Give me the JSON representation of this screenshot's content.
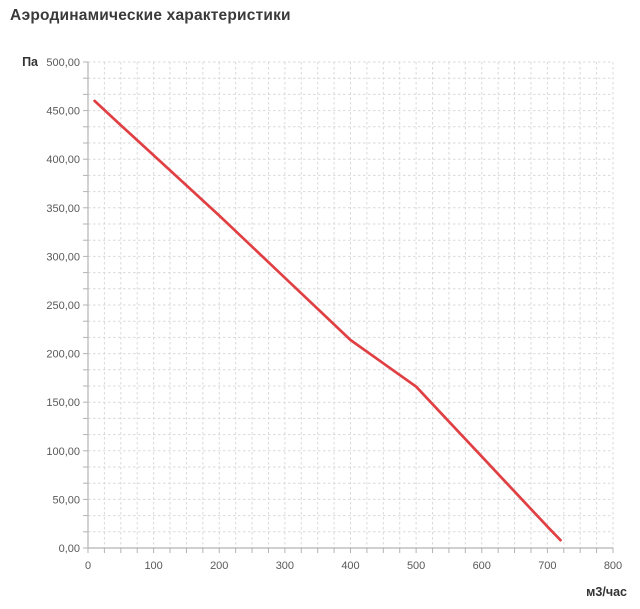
{
  "page": {
    "title": "Аэродинамические характеристики"
  },
  "chart_data": {
    "type": "line",
    "title": "Аэродинамические характеристики",
    "xlabel": "м3/час",
    "ylabel": "Па",
    "xlim": [
      0,
      800
    ],
    "ylim": [
      0,
      500
    ],
    "grid": true,
    "grid_minor_x_step": 25,
    "grid_minor_y_divisions": 30,
    "legend_position": "none",
    "x_tick_values": [
      0,
      100,
      200,
      300,
      400,
      500,
      600,
      700,
      800
    ],
    "x_tick_labels": [
      "0",
      "100",
      "200",
      "300",
      "400",
      "500",
      "600",
      "700",
      "800"
    ],
    "y_tick_values": [
      0,
      50,
      100,
      150,
      200,
      250,
      300,
      350,
      400,
      450,
      500
    ],
    "y_tick_labels": [
      "0,00",
      "50,00",
      "100,00",
      "150,00",
      "200,00",
      "250,00",
      "300,00",
      "350,00",
      "400,00",
      "450,00",
      "500,00"
    ],
    "series": [
      {
        "x": [
          10,
          50,
          100,
          150,
          200,
          250,
          300,
          350,
          400,
          450,
          500,
          550,
          600,
          650,
          700,
          720
        ],
        "y": [
          460,
          435,
          404,
          373,
          342,
          310,
          278,
          246,
          214,
          190,
          166,
          130,
          94,
          58,
          22,
          8
        ],
        "color": "#e04043"
      }
    ],
    "colors": {
      "grid": "#d9d9d9",
      "axis": "#b3b3b3",
      "tick_label": "#595959",
      "title": "#3a3a3a",
      "line": "#e04043"
    }
  }
}
